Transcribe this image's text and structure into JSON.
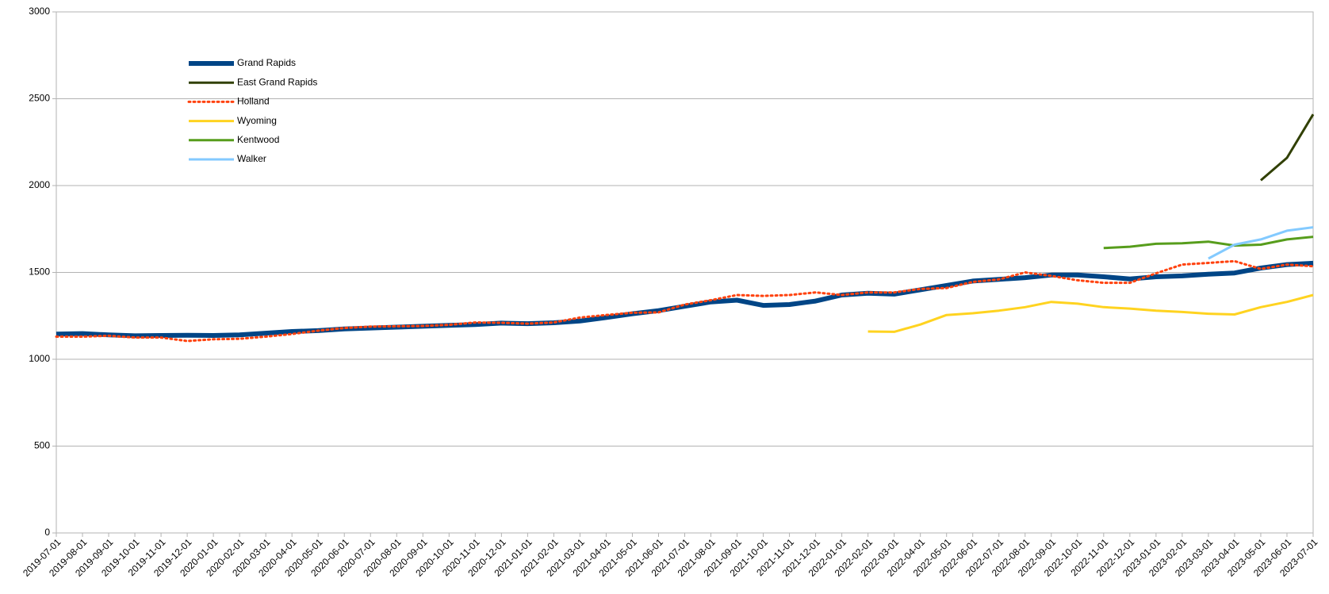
{
  "chart_data": {
    "type": "line",
    "categories": [
      "2019-07-01",
      "2019-08-01",
      "2019-09-01",
      "2019-10-01",
      "2019-11-01",
      "2019-12-01",
      "2020-01-01",
      "2020-02-01",
      "2020-03-01",
      "2020-04-01",
      "2020-05-01",
      "2020-06-01",
      "2020-07-01",
      "2020-08-01",
      "2020-09-01",
      "2020-10-01",
      "2020-11-01",
      "2020-12-01",
      "2021-01-01",
      "2021-02-01",
      "2021-03-01",
      "2021-04-01",
      "2021-05-01",
      "2021-06-01",
      "2021-07-01",
      "2021-08-01",
      "2021-09-01",
      "2021-10-01",
      "2021-11-01",
      "2021-12-01",
      "2022-01-01",
      "2022-02-01",
      "2022-03-01",
      "2022-04-01",
      "2022-05-01",
      "2022-06-01",
      "2022-07-01",
      "2022-08-01",
      "2022-09-01",
      "2022-10-01",
      "2022-11-01",
      "2022-12-01",
      "2023-01-01",
      "2023-02-01",
      "2023-03-01",
      "2023-04-01",
      "2023-05-01",
      "2023-06-01",
      "2023-07-01"
    ],
    "series": [
      {
        "name": "Grand Rapids",
        "color": "#004586",
        "width": 6,
        "dash": false,
        "values": [
          1145,
          1148,
          1140,
          1135,
          1137,
          1138,
          1137,
          1140,
          1150,
          1160,
          1165,
          1175,
          1180,
          1185,
          1190,
          1195,
          1200,
          1208,
          1205,
          1210,
          1220,
          1240,
          1262,
          1280,
          1305,
          1330,
          1340,
          1310,
          1315,
          1335,
          1370,
          1380,
          1375,
          1400,
          1425,
          1450,
          1460,
          1470,
          1485,
          1485,
          1475,
          1462,
          1475,
          1480,
          1490,
          1497,
          1525,
          1545,
          1553
        ]
      },
      {
        "name": "East Grand Rapids",
        "color": "#314004",
        "width": 3,
        "dash": false,
        "values": [
          null,
          null,
          null,
          null,
          null,
          null,
          null,
          null,
          null,
          null,
          null,
          null,
          null,
          null,
          null,
          null,
          null,
          null,
          null,
          null,
          null,
          null,
          null,
          null,
          null,
          null,
          null,
          null,
          null,
          null,
          null,
          null,
          null,
          null,
          null,
          null,
          null,
          null,
          null,
          null,
          null,
          null,
          null,
          null,
          null,
          null,
          2030,
          2160,
          2410
        ]
      },
      {
        "name": "Holland",
        "color": "#ff420e",
        "width": 3,
        "dash": true,
        "values": [
          1130,
          1130,
          1135,
          1125,
          1125,
          1105,
          1115,
          1118,
          1130,
          1145,
          1165,
          1180,
          1188,
          1190,
          1192,
          1198,
          1212,
          1210,
          1205,
          1212,
          1240,
          1255,
          1268,
          1270,
          1315,
          1340,
          1370,
          1365,
          1370,
          1385,
          1370,
          1385,
          1385,
          1405,
          1410,
          1445,
          1460,
          1500,
          1480,
          1455,
          1440,
          1440,
          1495,
          1545,
          1555,
          1565,
          1520,
          1545,
          1535
        ]
      },
      {
        "name": "Wyoming",
        "color": "#ffd320",
        "width": 3,
        "dash": false,
        "values": [
          null,
          null,
          null,
          null,
          null,
          null,
          null,
          null,
          null,
          null,
          null,
          null,
          null,
          null,
          null,
          null,
          null,
          null,
          null,
          null,
          null,
          null,
          null,
          null,
          null,
          null,
          null,
          null,
          null,
          null,
          null,
          1160,
          1158,
          1200,
          1255,
          1265,
          1280,
          1300,
          1330,
          1320,
          1300,
          1292,
          1280,
          1272,
          1262,
          1258,
          1300,
          1330,
          1370
        ]
      },
      {
        "name": "Kentwood",
        "color": "#579d1c",
        "width": 3,
        "dash": false,
        "values": [
          null,
          null,
          null,
          null,
          null,
          null,
          null,
          null,
          null,
          null,
          null,
          null,
          null,
          null,
          null,
          null,
          null,
          null,
          null,
          null,
          null,
          null,
          null,
          null,
          null,
          null,
          null,
          null,
          null,
          null,
          null,
          null,
          null,
          null,
          null,
          null,
          null,
          null,
          null,
          null,
          1640,
          1648,
          1665,
          1668,
          1677,
          1655,
          1660,
          1690,
          1705
        ]
      },
      {
        "name": "Walker",
        "color": "#83caff",
        "width": 3,
        "dash": false,
        "values": [
          null,
          null,
          null,
          null,
          null,
          null,
          null,
          null,
          null,
          null,
          null,
          null,
          null,
          null,
          null,
          null,
          null,
          null,
          null,
          null,
          null,
          null,
          null,
          null,
          null,
          null,
          null,
          null,
          null,
          null,
          null,
          null,
          null,
          null,
          null,
          null,
          null,
          null,
          null,
          null,
          null,
          null,
          null,
          null,
          1580,
          1660,
          1690,
          1740,
          1760
        ]
      }
    ],
    "ylim": [
      0,
      3000
    ],
    "yticks": [
      0,
      500,
      1000,
      1500,
      2000,
      2500,
      3000
    ],
    "grid": true,
    "legend": "upper left"
  }
}
